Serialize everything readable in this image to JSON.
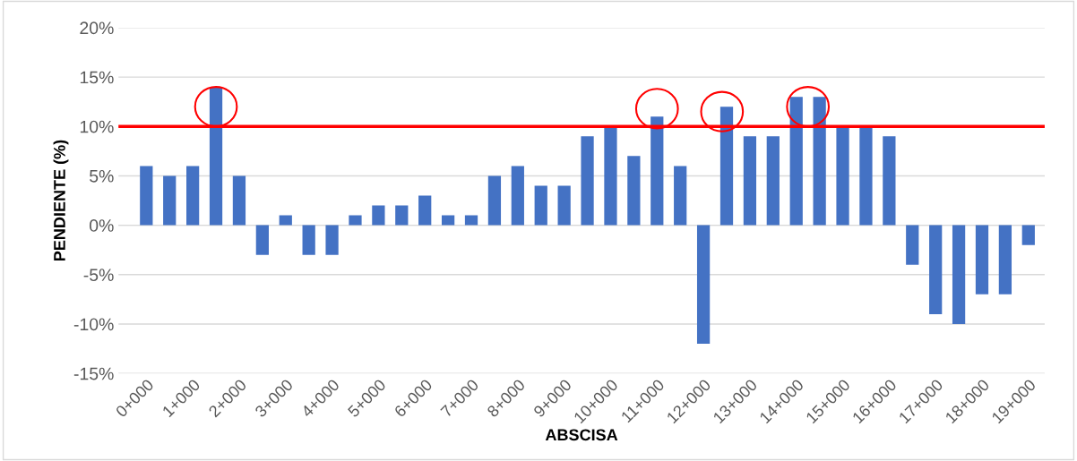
{
  "chart_data": {
    "type": "bar",
    "xlabel": "ABSCISA",
    "ylabel": "PENDIENTE (%)",
    "categories": [
      "0+000",
      null,
      "1+000",
      null,
      "2+000",
      null,
      "3+000",
      null,
      "4+000",
      null,
      "5+000",
      null,
      "6+000",
      null,
      "7+000",
      null,
      "8+000",
      null,
      "9+000",
      null,
      "10+000",
      null,
      "11+000",
      null,
      "12+000",
      null,
      "13+000",
      null,
      "14+000",
      null,
      "15+000",
      null,
      "16+000",
      null,
      "17+000",
      null,
      "18+000",
      null,
      "19+000"
    ],
    "values": [
      6,
      5,
      6,
      14,
      5,
      -3,
      1,
      -3,
      -3,
      1,
      2,
      2,
      3,
      1,
      1,
      5,
      6,
      4,
      4,
      9,
      10,
      7,
      11,
      6,
      -12,
      12,
      9,
      9,
      13,
      13,
      10,
      10,
      9,
      -4,
      -9,
      -10,
      -7,
      -7,
      -2
    ],
    "color": "#4472c4",
    "ylim": [
      -15,
      20
    ],
    "yticks": [
      {
        "value": -15,
        "label": "-15%"
      },
      {
        "value": -10,
        "label": "-10%"
      },
      {
        "value": -5,
        "label": "-5%"
      },
      {
        "value": 0,
        "label": "0%"
      },
      {
        "value": 5,
        "label": "5%"
      },
      {
        "value": 10,
        "label": "10%"
      },
      {
        "value": 15,
        "label": "15%"
      },
      {
        "value": 20,
        "label": "20%"
      }
    ],
    "grid": "y",
    "ref_lines": [
      {
        "axis": "y",
        "value": 10,
        "color": "#ff0000",
        "line_style": "solid"
      }
    ]
  }
}
